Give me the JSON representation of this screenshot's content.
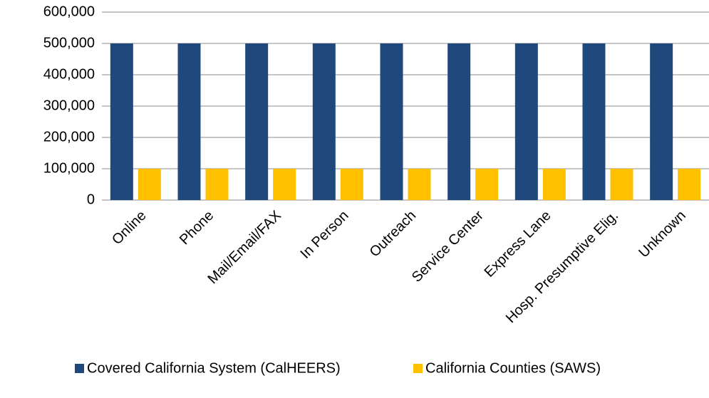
{
  "chart_data": {
    "type": "bar",
    "categories": [
      "Online",
      "Phone",
      "Mail/Email/FAX",
      "In Person",
      "Outreach",
      "Service Center",
      "Express Lane",
      "Hosp. Presumptive Elig.",
      "Unknown"
    ],
    "series": [
      {
        "name": "Covered California System (CalHEERS)",
        "color": "#1f497d",
        "values": [
          500000,
          500000,
          500000,
          500000,
          500000,
          500000,
          500000,
          500000,
          500000
        ]
      },
      {
        "name": "California Counties (SAWS)",
        "color": "#ffc000",
        "values": [
          100000,
          100000,
          100000,
          100000,
          100000,
          100000,
          100000,
          100000,
          100000
        ]
      }
    ],
    "ylim": [
      0,
      600000
    ],
    "yticks": [
      0,
      {
        "value": 100000,
        "label": "100,000"
      },
      {
        "value": 200000,
        "label": "200,000"
      },
      {
        "value": 300000,
        "label": "300,000"
      },
      {
        "value": 400000,
        "label": "400,000"
      },
      {
        "value": 500000,
        "label": "500,000"
      },
      {
        "value": 600000,
        "label": "600,000"
      }
    ],
    "grid": true,
    "legend": "bottom"
  }
}
